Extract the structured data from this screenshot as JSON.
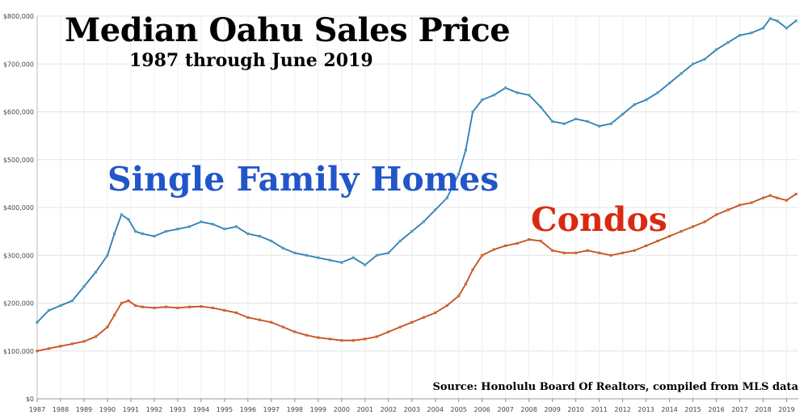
{
  "chart_data": {
    "type": "line",
    "title": "Median Oahu Sales Price",
    "subtitle": "1987 through June 2019",
    "source": "Source: Honolulu Board Of Realtors, compiled from MLS data",
    "xlabel": "",
    "ylabel": "",
    "xlim": [
      1987,
      2019.5
    ],
    "ylim": [
      0,
      800000
    ],
    "grid": true,
    "y_ticks": [
      {
        "value": 0,
        "label": "$0"
      },
      {
        "value": 100000,
        "label": "$100,000"
      },
      {
        "value": 200000,
        "label": "$200,000"
      },
      {
        "value": 300000,
        "label": "$300,000"
      },
      {
        "value": 400000,
        "label": "$400,000"
      },
      {
        "value": 500000,
        "label": "$500,000"
      },
      {
        "value": 600000,
        "label": "$600,000"
      },
      {
        "value": 700000,
        "label": "$700,000"
      },
      {
        "value": 800000,
        "label": "$800,000"
      }
    ],
    "x_ticks": [
      "1987",
      "1988",
      "1989",
      "1990",
      "1991",
      "1992",
      "1993",
      "1994",
      "1995",
      "1996",
      "1997",
      "1998",
      "1999",
      "2000",
      "2001",
      "2002",
      "2003",
      "2004",
      "2005",
      "2006",
      "2007",
      "2008",
      "2009",
      "2010",
      "2011",
      "2012",
      "2013",
      "2014",
      "2015",
      "2016",
      "2017",
      "2018",
      "2019"
    ],
    "series": [
      {
        "name": "Single Family Homes",
        "color": "#2e7bb6",
        "marker_color": "#4a9fb5",
        "label_color": "#2156c8",
        "x": [
          1987.0,
          1987.5,
          1988.0,
          1988.5,
          1989.0,
          1989.5,
          1990.0,
          1990.3,
          1990.6,
          1990.9,
          1991.2,
          1991.5,
          1992.0,
          1992.5,
          1993.0,
          1993.5,
          1994.0,
          1994.5,
          1995.0,
          1995.5,
          1996.0,
          1996.5,
          1997.0,
          1997.5,
          1998.0,
          1998.5,
          1999.0,
          1999.5,
          2000.0,
          2000.5,
          2001.0,
          2001.5,
          2002.0,
          2002.5,
          2003.0,
          2003.5,
          2004.0,
          2004.5,
          2005.0,
          2005.3,
          2005.6,
          2006.0,
          2006.5,
          2007.0,
          2007.5,
          2008.0,
          2008.5,
          2009.0,
          2009.5,
          2010.0,
          2010.5,
          2011.0,
          2011.5,
          2012.0,
          2012.5,
          2013.0,
          2013.5,
          2014.0,
          2014.5,
          2015.0,
          2015.5,
          2016.0,
          2016.5,
          2017.0,
          2017.5,
          2018.0,
          2018.3,
          2018.6,
          2019.0,
          2019.4
        ],
        "values": [
          160000,
          185000,
          195000,
          205000,
          235000,
          265000,
          300000,
          345000,
          385000,
          375000,
          350000,
          345000,
          340000,
          350000,
          355000,
          360000,
          370000,
          365000,
          355000,
          360000,
          345000,
          340000,
          330000,
          315000,
          305000,
          300000,
          295000,
          290000,
          285000,
          295000,
          280000,
          300000,
          305000,
          330000,
          350000,
          370000,
          395000,
          420000,
          470000,
          520000,
          600000,
          625000,
          635000,
          650000,
          640000,
          635000,
          610000,
          580000,
          575000,
          585000,
          580000,
          570000,
          575000,
          595000,
          615000,
          625000,
          640000,
          660000,
          680000,
          700000,
          710000,
          730000,
          745000,
          760000,
          765000,
          775000,
          795000,
          790000,
          775000,
          790000
        ]
      },
      {
        "name": "Condos",
        "color": "#c44d1e",
        "marker_color": "#d0642c",
        "label_color": "#d82a12",
        "x": [
          1987.0,
          1987.5,
          1988.0,
          1988.5,
          1989.0,
          1989.5,
          1990.0,
          1990.3,
          1990.6,
          1990.9,
          1991.2,
          1991.5,
          1992.0,
          1992.5,
          1993.0,
          1993.5,
          1994.0,
          1994.5,
          1995.0,
          1995.5,
          1996.0,
          1996.5,
          1997.0,
          1997.5,
          1998.0,
          1998.5,
          1999.0,
          1999.5,
          2000.0,
          2000.5,
          2001.0,
          2001.5,
          2002.0,
          2002.5,
          2003.0,
          2003.5,
          2004.0,
          2004.5,
          2005.0,
          2005.3,
          2005.6,
          2006.0,
          2006.5,
          2007.0,
          2007.5,
          2008.0,
          2008.5,
          2009.0,
          2009.5,
          2010.0,
          2010.5,
          2011.0,
          2011.5,
          2012.0,
          2012.5,
          2013.0,
          2013.5,
          2014.0,
          2014.5,
          2015.0,
          2015.5,
          2016.0,
          2016.5,
          2017.0,
          2017.5,
          2018.0,
          2018.3,
          2018.6,
          2019.0,
          2019.4
        ],
        "values": [
          100000,
          105000,
          110000,
          115000,
          120000,
          130000,
          150000,
          175000,
          200000,
          205000,
          195000,
          192000,
          190000,
          192000,
          190000,
          192000,
          193000,
          190000,
          185000,
          180000,
          170000,
          165000,
          160000,
          150000,
          140000,
          133000,
          128000,
          125000,
          122000,
          122000,
          125000,
          130000,
          140000,
          150000,
          160000,
          170000,
          180000,
          195000,
          215000,
          240000,
          270000,
          300000,
          312000,
          320000,
          325000,
          333000,
          330000,
          310000,
          305000,
          305000,
          310000,
          305000,
          300000,
          305000,
          310000,
          320000,
          330000,
          340000,
          350000,
          360000,
          370000,
          385000,
          395000,
          405000,
          410000,
          420000,
          425000,
          420000,
          415000,
          428000
        ]
      }
    ]
  }
}
